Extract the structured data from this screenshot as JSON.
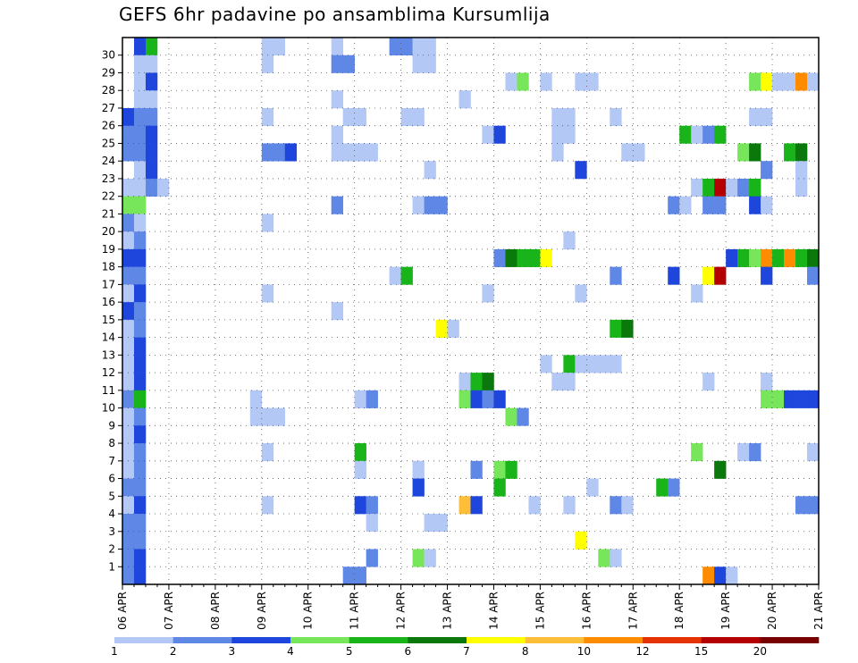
{
  "chart_data": {
    "type": "heatmap",
    "title": "GEFS 6hr padavine po ansamblima Kursumlija",
    "x_tick_labels": [
      "06 APR",
      "07 APR",
      "08 APR",
      "09 APR",
      "10 APR",
      "11 APR",
      "12 APR",
      "13 APR",
      "14 APR",
      "15 APR",
      "16 APR",
      "17 APR",
      "18 APR",
      "19 APR",
      "20 APR",
      "21 APR"
    ],
    "y_tick_labels": [
      "1",
      "2",
      "3",
      "4",
      "5",
      "6",
      "7",
      "8",
      "9",
      "10",
      "11",
      "12",
      "13",
      "14",
      "15",
      "16",
      "17",
      "18",
      "19",
      "20",
      "21",
      "22",
      "23",
      "24",
      "25",
      "26",
      "27",
      "28",
      "29",
      "30"
    ],
    "x_range_days": [
      0,
      15
    ],
    "time_step_hours": 6,
    "members": 30,
    "grid": "dotted",
    "colorbar": {
      "placement": "bottom",
      "levels": [
        "1",
        "2",
        "3",
        "4",
        "5",
        "6",
        "7",
        "8",
        "10",
        "12",
        "15",
        "20"
      ],
      "colors": [
        "#b4c8f5",
        "#5f87e6",
        "#1e46dc",
        "#78e65a",
        "#19b419",
        "#0a780a",
        "#ffff00",
        "#ffbe37",
        "#ff8c00",
        "#e63200",
        "#b40000",
        "#780000"
      ]
    },
    "cells_note": "each cell: [column index of 6h step from 06 APR 00Z, ensemble member, color class 0-11]",
    "cells": [
      [
        1,
        30,
        2
      ],
      [
        2,
        30,
        4
      ],
      [
        12,
        30,
        0
      ],
      [
        13,
        30,
        0
      ],
      [
        18,
        30,
        0
      ],
      [
        23,
        30,
        1
      ],
      [
        24,
        30,
        1
      ],
      [
        25,
        30,
        0
      ],
      [
        26,
        30,
        0
      ],
      [
        1,
        29,
        0
      ],
      [
        2,
        29,
        0
      ],
      [
        12,
        29,
        0
      ],
      [
        18,
        29,
        1
      ],
      [
        19,
        29,
        1
      ],
      [
        25,
        29,
        0
      ],
      [
        26,
        29,
        0
      ],
      [
        1,
        28,
        0
      ],
      [
        2,
        28,
        2
      ],
      [
        33,
        28,
        0
      ],
      [
        34,
        28,
        3
      ],
      [
        36,
        28,
        0
      ],
      [
        39,
        28,
        0
      ],
      [
        40,
        28,
        0
      ],
      [
        54,
        28,
        3
      ],
      [
        55,
        28,
        6
      ],
      [
        56,
        28,
        0
      ],
      [
        57,
        28,
        0
      ],
      [
        58,
        28,
        8
      ],
      [
        59,
        28,
        0
      ],
      [
        1,
        27,
        0
      ],
      [
        2,
        27,
        0
      ],
      [
        18,
        27,
        0
      ],
      [
        29,
        27,
        0
      ],
      [
        0,
        26,
        2
      ],
      [
        1,
        26,
        1
      ],
      [
        2,
        26,
        1
      ],
      [
        12,
        26,
        0
      ],
      [
        19,
        26,
        0
      ],
      [
        20,
        26,
        0
      ],
      [
        24,
        26,
        0
      ],
      [
        25,
        26,
        0
      ],
      [
        37,
        26,
        0
      ],
      [
        38,
        26,
        0
      ],
      [
        42,
        26,
        0
      ],
      [
        54,
        26,
        0
      ],
      [
        55,
        26,
        0
      ],
      [
        0,
        25,
        1
      ],
      [
        1,
        25,
        1
      ],
      [
        2,
        25,
        2
      ],
      [
        18,
        25,
        0
      ],
      [
        31,
        25,
        0
      ],
      [
        32,
        25,
        2
      ],
      [
        37,
        25,
        0
      ],
      [
        38,
        25,
        0
      ],
      [
        48,
        25,
        4
      ],
      [
        49,
        25,
        0
      ],
      [
        50,
        25,
        1
      ],
      [
        51,
        25,
        4
      ],
      [
        0,
        24,
        1
      ],
      [
        1,
        24,
        1
      ],
      [
        2,
        24,
        2
      ],
      [
        12,
        24,
        1
      ],
      [
        13,
        24,
        1
      ],
      [
        14,
        24,
        2
      ],
      [
        18,
        24,
        0
      ],
      [
        19,
        24,
        0
      ],
      [
        20,
        24,
        0
      ],
      [
        21,
        24,
        0
      ],
      [
        37,
        24,
        0
      ],
      [
        43,
        24,
        0
      ],
      [
        44,
        24,
        0
      ],
      [
        53,
        24,
        3
      ],
      [
        54,
        24,
        5
      ],
      [
        57,
        24,
        4
      ],
      [
        58,
        24,
        5
      ],
      [
        1,
        23,
        0
      ],
      [
        2,
        23,
        2
      ],
      [
        26,
        23,
        0
      ],
      [
        39,
        23,
        2
      ],
      [
        55,
        23,
        1
      ],
      [
        58,
        23,
        0
      ],
      [
        0,
        22,
        0
      ],
      [
        1,
        22,
        0
      ],
      [
        2,
        22,
        1
      ],
      [
        3,
        22,
        0
      ],
      [
        49,
        22,
        0
      ],
      [
        50,
        22,
        4
      ],
      [
        51,
        22,
        10
      ],
      [
        52,
        22,
        0
      ],
      [
        53,
        22,
        1
      ],
      [
        54,
        22,
        4
      ],
      [
        58,
        22,
        0
      ],
      [
        0,
        21,
        3
      ],
      [
        1,
        21,
        3
      ],
      [
        18,
        21,
        1
      ],
      [
        25,
        21,
        0
      ],
      [
        26,
        21,
        1
      ],
      [
        27,
        21,
        1
      ],
      [
        47,
        21,
        1
      ],
      [
        48,
        21,
        0
      ],
      [
        50,
        21,
        1
      ],
      [
        51,
        21,
        1
      ],
      [
        54,
        21,
        2
      ],
      [
        55,
        21,
        0
      ],
      [
        0,
        20,
        1
      ],
      [
        1,
        20,
        0
      ],
      [
        12,
        20,
        0
      ],
      [
        0,
        19,
        0
      ],
      [
        1,
        19,
        1
      ],
      [
        38,
        19,
        0
      ],
      [
        0,
        18,
        2
      ],
      [
        1,
        18,
        2
      ],
      [
        32,
        18,
        1
      ],
      [
        33,
        18,
        5
      ],
      [
        34,
        18,
        4
      ],
      [
        35,
        18,
        4
      ],
      [
        36,
        18,
        6
      ],
      [
        52,
        18,
        2
      ],
      [
        53,
        18,
        4
      ],
      [
        54,
        18,
        3
      ],
      [
        55,
        18,
        8
      ],
      [
        56,
        18,
        4
      ],
      [
        57,
        18,
        8
      ],
      [
        58,
        18,
        4
      ],
      [
        59,
        18,
        5
      ],
      [
        60,
        18,
        2
      ],
      [
        0,
        17,
        1
      ],
      [
        1,
        17,
        1
      ],
      [
        23,
        17,
        0
      ],
      [
        24,
        17,
        4
      ],
      [
        42,
        17,
        1
      ],
      [
        47,
        17,
        2
      ],
      [
        50,
        17,
        6
      ],
      [
        51,
        17,
        10
      ],
      [
        55,
        17,
        2
      ],
      [
        59,
        17,
        1
      ],
      [
        0,
        16,
        0
      ],
      [
        1,
        16,
        2
      ],
      [
        12,
        16,
        0
      ],
      [
        31,
        16,
        0
      ],
      [
        39,
        16,
        0
      ],
      [
        49,
        16,
        0
      ],
      [
        0,
        15,
        2
      ],
      [
        1,
        15,
        1
      ],
      [
        18,
        15,
        0
      ],
      [
        0,
        14,
        0
      ],
      [
        1,
        14,
        1
      ],
      [
        27,
        14,
        6
      ],
      [
        28,
        14,
        0
      ],
      [
        42,
        14,
        4
      ],
      [
        43,
        14,
        5
      ],
      [
        0,
        13,
        0
      ],
      [
        1,
        13,
        2
      ],
      [
        0,
        12,
        0
      ],
      [
        1,
        12,
        2
      ],
      [
        36,
        12,
        0
      ],
      [
        38,
        12,
        4
      ],
      [
        39,
        12,
        0
      ],
      [
        40,
        12,
        0
      ],
      [
        41,
        12,
        0
      ],
      [
        42,
        12,
        0
      ],
      [
        60,
        12,
        0
      ],
      [
        0,
        11,
        0
      ],
      [
        1,
        11,
        2
      ],
      [
        29,
        11,
        0
      ],
      [
        30,
        11,
        4
      ],
      [
        31,
        11,
        5
      ],
      [
        37,
        11,
        0
      ],
      [
        38,
        11,
        0
      ],
      [
        50,
        11,
        0
      ],
      [
        55,
        11,
        0
      ],
      [
        0,
        10,
        1
      ],
      [
        1,
        10,
        4
      ],
      [
        11,
        10,
        0
      ],
      [
        20,
        10,
        0
      ],
      [
        21,
        10,
        1
      ],
      [
        29,
        10,
        3
      ],
      [
        30,
        10,
        2
      ],
      [
        31,
        10,
        1
      ],
      [
        32,
        10,
        2
      ],
      [
        55,
        10,
        3
      ],
      [
        56,
        10,
        3
      ],
      [
        57,
        10,
        2
      ],
      [
        58,
        10,
        2
      ],
      [
        59,
        10,
        2
      ],
      [
        60,
        10,
        0
      ],
      [
        0,
        9,
        0
      ],
      [
        1,
        9,
        1
      ],
      [
        11,
        9,
        0
      ],
      [
        12,
        9,
        0
      ],
      [
        13,
        9,
        0
      ],
      [
        33,
        9,
        3
      ],
      [
        34,
        9,
        1
      ],
      [
        0,
        8,
        0
      ],
      [
        1,
        8,
        2
      ],
      [
        0,
        7,
        0
      ],
      [
        1,
        7,
        1
      ],
      [
        12,
        7,
        0
      ],
      [
        20,
        7,
        4
      ],
      [
        49,
        7,
        3
      ],
      [
        53,
        7,
        0
      ],
      [
        54,
        7,
        1
      ],
      [
        59,
        7,
        0
      ],
      [
        0,
        6,
        0
      ],
      [
        1,
        6,
        1
      ],
      [
        20,
        6,
        0
      ],
      [
        25,
        6,
        0
      ],
      [
        30,
        6,
        1
      ],
      [
        32,
        6,
        3
      ],
      [
        33,
        6,
        4
      ],
      [
        51,
        6,
        5
      ],
      [
        60,
        6,
        3
      ],
      [
        0,
        5,
        1
      ],
      [
        1,
        5,
        1
      ],
      [
        25,
        5,
        2
      ],
      [
        32,
        5,
        4
      ],
      [
        40,
        5,
        0
      ],
      [
        46,
        5,
        4
      ],
      [
        47,
        5,
        1
      ],
      [
        0,
        4,
        0
      ],
      [
        1,
        4,
        2
      ],
      [
        12,
        4,
        0
      ],
      [
        20,
        4,
        2
      ],
      [
        21,
        4,
        1
      ],
      [
        29,
        4,
        7
      ],
      [
        30,
        4,
        2
      ],
      [
        35,
        4,
        0
      ],
      [
        38,
        4,
        0
      ],
      [
        42,
        4,
        1
      ],
      [
        43,
        4,
        0
      ],
      [
        58,
        4,
        1
      ],
      [
        59,
        4,
        1
      ],
      [
        0,
        3,
        1
      ],
      [
        1,
        3,
        1
      ],
      [
        21,
        3,
        0
      ],
      [
        26,
        3,
        0
      ],
      [
        27,
        3,
        0
      ],
      [
        0,
        2,
        1
      ],
      [
        1,
        2,
        1
      ],
      [
        39,
        2,
        6
      ],
      [
        0,
        1,
        1
      ],
      [
        1,
        1,
        2
      ],
      [
        21,
        1,
        1
      ],
      [
        25,
        1,
        3
      ],
      [
        26,
        1,
        0
      ],
      [
        41,
        1,
        3
      ],
      [
        42,
        1,
        0
      ],
      [
        0,
        0,
        1
      ],
      [
        1,
        0,
        2
      ],
      [
        19,
        0,
        1
      ],
      [
        20,
        0,
        1
      ],
      [
        50,
        0,
        8
      ],
      [
        51,
        0,
        2
      ],
      [
        52,
        0,
        0
      ]
    ]
  }
}
